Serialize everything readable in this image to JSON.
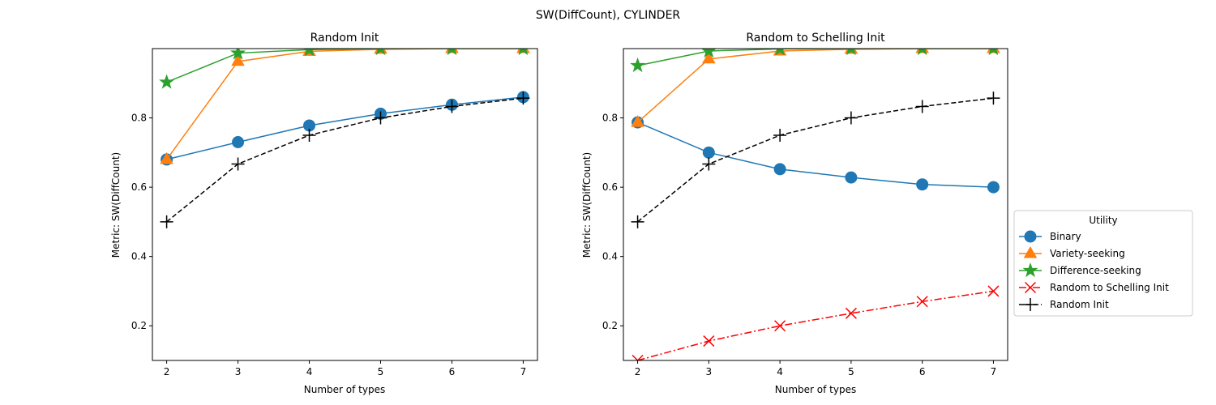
{
  "figure": {
    "suptitle": "SW(DiffCount), CYLINDER"
  },
  "legend": {
    "title": "Utility",
    "entries": [
      {
        "label": "Binary",
        "color": "#1f77b4",
        "marker": "circle",
        "dash": "solid"
      },
      {
        "label": "Variety-seeking",
        "color": "#ff7f0e",
        "marker": "triangle",
        "dash": "solid"
      },
      {
        "label": "Difference-seeking",
        "color": "#2ca02c",
        "marker": "star",
        "dash": "solid"
      },
      {
        "label": "Random to Schelling Init",
        "color": "#ff0000",
        "marker": "x",
        "dash": "dashdot"
      },
      {
        "label": "Random Init",
        "color": "#000000",
        "marker": "plus",
        "dash": "dashed"
      }
    ]
  },
  "chart_data": [
    {
      "type": "line",
      "title": "Random Init",
      "xlabel": "Number of types",
      "ylabel": "Metric: SW(DiffCount)",
      "x": [
        2,
        3,
        4,
        5,
        6,
        7
      ],
      "xlim": [
        1.8,
        7.2
      ],
      "ylim": [
        0.1,
        1.0
      ],
      "yticks": [
        0.2,
        0.4,
        0.6,
        0.8
      ],
      "grid": false,
      "series": [
        {
          "name": "Binary",
          "color": "#1f77b4",
          "marker": "circle",
          "dash": "solid",
          "values": [
            0.68,
            0.73,
            0.778,
            0.812,
            0.838,
            0.86
          ]
        },
        {
          "name": "Variety-seeking",
          "color": "#ff7f0e",
          "marker": "triangle",
          "dash": "solid",
          "values": [
            0.68,
            0.963,
            0.992,
            0.998,
            1.0,
            1.0
          ]
        },
        {
          "name": "Difference-seeking",
          "color": "#2ca02c",
          "marker": "star",
          "dash": "solid",
          "values": [
            0.903,
            0.987,
            0.997,
            1.0,
            1.0,
            1.0
          ]
        },
        {
          "name": "Random Init",
          "color": "#000000",
          "marker": "plus",
          "dash": "dashed",
          "values": [
            0.5,
            0.667,
            0.75,
            0.8,
            0.833,
            0.857
          ]
        }
      ]
    },
    {
      "type": "line",
      "title": "Random to Schelling Init",
      "xlabel": "Number of types",
      "ylabel": "Metric: SW(DiffCount)",
      "x": [
        2,
        3,
        4,
        5,
        6,
        7
      ],
      "xlim": [
        1.8,
        7.2
      ],
      "ylim": [
        0.1,
        1.0
      ],
      "yticks": [
        0.2,
        0.4,
        0.6,
        0.8
      ],
      "grid": false,
      "legend_position": "outside-right",
      "series": [
        {
          "name": "Binary",
          "color": "#1f77b4",
          "marker": "circle",
          "dash": "solid",
          "values": [
            0.787,
            0.7,
            0.652,
            0.628,
            0.608,
            0.6
          ]
        },
        {
          "name": "Variety-seeking",
          "color": "#ff7f0e",
          "marker": "triangle",
          "dash": "solid",
          "values": [
            0.787,
            0.97,
            0.993,
            0.998,
            1.0,
            1.0
          ]
        },
        {
          "name": "Difference-seeking",
          "color": "#2ca02c",
          "marker": "star",
          "dash": "solid",
          "values": [
            0.951,
            0.993,
            0.999,
            1.0,
            1.0,
            1.0
          ]
        },
        {
          "name": "Random to Schelling Init",
          "color": "#ff0000",
          "marker": "x",
          "dash": "dashdot",
          "values": [
            0.1,
            0.156,
            0.2,
            0.236,
            0.27,
            0.3
          ]
        },
        {
          "name": "Random Init",
          "color": "#000000",
          "marker": "plus",
          "dash": "dashed",
          "values": [
            0.5,
            0.667,
            0.75,
            0.8,
            0.833,
            0.857
          ]
        }
      ]
    }
  ]
}
